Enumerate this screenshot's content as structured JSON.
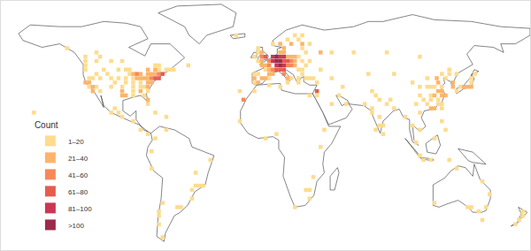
{
  "chart_data": {
    "type": "map",
    "color_title": "Count",
    "legend": "bottom left",
    "tick_labels": false,
    "xlim": [
      -180,
      180
    ],
    "ylim": [
      -60,
      85
    ],
    "bins": [
      {
        "label": "1–20",
        "min": 1,
        "max": 20,
        "color": "#fddc8e"
      },
      {
        "label": "21–40",
        "min": 21,
        "max": 40,
        "color": "#fcb46b"
      },
      {
        "label": "41–60",
        "min": 41,
        "max": 60,
        "color": "#f6895a"
      },
      {
        "label": "61–80",
        "min": 61,
        "max": 80,
        "color": "#e65c4f"
      },
      {
        "label": "81–100",
        "min": 81,
        "max": 100,
        "color": "#c93853"
      },
      {
        "label": ">100",
        "min": 101,
        "max": null,
        "color": "#9c2a4b"
      }
    ],
    "cells": [
      [
        -122.5,
        47.5,
        18
      ],
      [
        -122.5,
        45,
        12
      ],
      [
        -122.5,
        37.5,
        35
      ],
      [
        -120,
        37.5,
        22
      ],
      [
        -120,
        35,
        15
      ],
      [
        -117.5,
        35,
        28
      ],
      [
        -117.5,
        32.5,
        30
      ],
      [
        -120,
        40,
        6
      ],
      [
        -117.5,
        40,
        4
      ],
      [
        -115,
        35,
        8
      ],
      [
        -112.5,
        32.5,
        10
      ],
      [
        -112.5,
        40,
        12
      ],
      [
        -115,
        42.5,
        4
      ],
      [
        -110,
        45,
        3
      ],
      [
        -105,
        40,
        18
      ],
      [
        -105,
        35,
        9
      ],
      [
        -107.5,
        42.5,
        3
      ],
      [
        -102.5,
        37.5,
        4
      ],
      [
        -100,
        40,
        6
      ],
      [
        -97.5,
        30,
        22
      ],
      [
        -97.5,
        32.5,
        25
      ],
      [
        -95,
        30,
        28
      ],
      [
        -97.5,
        35,
        10
      ],
      [
        -95,
        37.5,
        12
      ],
      [
        -95,
        40,
        9
      ],
      [
        -92.5,
        42.5,
        14
      ],
      [
        -90,
        42.5,
        30
      ],
      [
        -87.5,
        42.5,
        45
      ],
      [
        -87.5,
        40,
        22
      ],
      [
        -90,
        40,
        12
      ],
      [
        -90,
        37.5,
        18
      ],
      [
        -90,
        35,
        10
      ],
      [
        -90,
        32.5,
        8
      ],
      [
        -90,
        30,
        14
      ],
      [
        -85,
        42.5,
        35
      ],
      [
        -85,
        40,
        26
      ],
      [
        -85,
        37.5,
        18
      ],
      [
        -85,
        35,
        20
      ],
      [
        -85,
        32.5,
        22
      ],
      [
        -82.5,
        40,
        30
      ],
      [
        -82.5,
        35,
        16
      ],
      [
        -82.5,
        30,
        12
      ],
      [
        -80,
        27.5,
        25
      ],
      [
        -80,
        25,
        20
      ],
      [
        -80,
        32.5,
        10
      ],
      [
        -80,
        35,
        24
      ],
      [
        -80,
        37.5,
        28
      ],
      [
        -80,
        40,
        38
      ],
      [
        -77.5,
        37.5,
        32
      ],
      [
        -77.5,
        40,
        48
      ],
      [
        -75,
        40,
        62
      ],
      [
        -75,
        42.5,
        40
      ],
      [
        -72.5,
        42.5,
        55
      ],
      [
        -70,
        42.5,
        72
      ],
      [
        -72.5,
        40,
        66
      ],
      [
        -77.5,
        42.5,
        25
      ],
      [
        -95,
        45,
        15
      ],
      [
        -92.5,
        45,
        18
      ],
      [
        -100,
        45,
        3
      ],
      [
        -122.5,
        50,
        8
      ],
      [
        -115,
        50,
        3
      ],
      [
        -80,
        45,
        26
      ],
      [
        -75,
        45,
        30
      ],
      [
        -72.5,
        45,
        14
      ],
      [
        -67.5,
        45,
        4
      ],
      [
        -105,
        50,
        3
      ],
      [
        -97.5,
        50,
        5
      ],
      [
        -65,
        45,
        3
      ],
      [
        -112.5,
        52.5,
        5
      ],
      [
        -80,
        42.5,
        28
      ],
      [
        -75,
        47.5,
        12
      ],
      [
        -72.5,
        47.5,
        8
      ],
      [
        -62.5,
        45,
        6
      ],
      [
        -52.5,
        47.5,
        3
      ],
      [
        -122.5,
        52.5,
        3
      ],
      [
        -135,
        57.5,
        2
      ],
      [
        -115,
        55,
        3
      ],
      [
        -100,
        20,
        14
      ],
      [
        -102.5,
        22.5,
        4
      ],
      [
        -97.5,
        17.5,
        3
      ],
      [
        -105,
        20,
        3
      ],
      [
        -90,
        15,
        3
      ],
      [
        -85,
        10,
        3
      ],
      [
        -80,
        7.5,
        3
      ],
      [
        -75,
        20,
        4
      ],
      [
        -67.5,
        17.5,
        8
      ],
      [
        -157.5,
        20,
        5
      ],
      [
        -75,
        5,
        4
      ],
      [
        -77.5,
        -2.5,
        3
      ],
      [
        -77.5,
        -12.5,
        4
      ],
      [
        -47.5,
        -22.5,
        12
      ],
      [
        -45,
        -22.5,
        10
      ],
      [
        -42.5,
        -22.5,
        8
      ],
      [
        -50,
        -25,
        5
      ],
      [
        -50,
        -30,
        4
      ],
      [
        -37.5,
        -7.5,
        3
      ],
      [
        -47.5,
        -15,
        3
      ],
      [
        -60,
        -35,
        8
      ],
      [
        -57.5,
        -35,
        5
      ],
      [
        -70,
        -32.5,
        10
      ],
      [
        -72.5,
        -37.5,
        6
      ],
      [
        -72.5,
        -40,
        4
      ],
      [
        -72.5,
        -45,
        3
      ],
      [
        -70,
        -52.5,
        2
      ],
      [
        -67.5,
        10,
        3
      ],
      [
        -2.5,
        52.5,
        45
      ],
      [
        -2.5,
        55,
        25
      ],
      [
        0,
        52.5,
        62
      ],
      [
        -5,
        50,
        20
      ],
      [
        -2.5,
        50,
        35
      ],
      [
        -5,
        55,
        18
      ],
      [
        -7.5,
        52.5,
        15
      ],
      [
        -5,
        57.5,
        10
      ],
      [
        2.5,
        47.5,
        48
      ],
      [
        2.5,
        50,
        55
      ],
      [
        0,
        47.5,
        30
      ],
      [
        -2.5,
        47.5,
        22
      ],
      [
        5,
        45,
        58
      ],
      [
        2.5,
        45,
        30
      ],
      [
        0,
        45,
        20
      ],
      [
        5,
        42.5,
        35
      ],
      [
        2.5,
        42.5,
        25
      ],
      [
        7.5,
        45,
        65
      ],
      [
        7.5,
        47.5,
        88
      ],
      [
        5,
        50,
        85
      ],
      [
        5,
        52.5,
        95
      ],
      [
        7.5,
        50,
        120
      ],
      [
        7.5,
        52.5,
        110
      ],
      [
        10,
        50,
        130
      ],
      [
        10,
        52.5,
        95
      ],
      [
        12.5,
        52.5,
        85
      ],
      [
        10,
        47.5,
        105
      ],
      [
        12.5,
        47.5,
        90
      ],
      [
        12.5,
        50,
        78
      ],
      [
        10,
        55,
        40
      ],
      [
        15,
        50,
        70
      ],
      [
        15,
        47.5,
        60
      ],
      [
        10,
        45,
        80
      ],
      [
        12.5,
        45,
        70
      ],
      [
        12.5,
        42.5,
        55
      ],
      [
        15,
        40,
        35
      ],
      [
        15,
        37.5,
        20
      ],
      [
        17.5,
        40,
        15
      ],
      [
        -2.5,
        40,
        40
      ],
      [
        -5,
        37.5,
        28
      ],
      [
        -7.5,
        40,
        22
      ],
      [
        -7.5,
        37.5,
        18
      ],
      [
        0,
        40,
        30
      ],
      [
        2.5,
        40,
        15
      ],
      [
        -7.5,
        42.5,
        15
      ],
      [
        -5,
        42.5,
        20
      ],
      [
        17.5,
        47.5,
        55
      ],
      [
        17.5,
        50,
        45
      ],
      [
        20,
        50,
        40
      ],
      [
        20,
        47.5,
        30
      ],
      [
        22.5,
        45,
        20
      ],
      [
        20,
        52.5,
        35
      ],
      [
        22.5,
        52.5,
        18
      ],
      [
        17.5,
        52.5,
        28
      ],
      [
        15,
        52.5,
        32
      ],
      [
        25,
        45,
        15
      ],
      [
        25,
        42.5,
        10
      ],
      [
        22.5,
        40,
        18
      ],
      [
        22.5,
        37.5,
        20
      ],
      [
        25,
        50,
        12
      ],
      [
        30,
        50,
        14
      ],
      [
        27.5,
        55,
        8
      ],
      [
        25,
        57.5,
        10
      ],
      [
        30,
        60,
        15
      ],
      [
        37.5,
        55,
        22
      ],
      [
        27.5,
        47.5,
        6
      ],
      [
        10,
        60,
        22
      ],
      [
        12.5,
        57.5,
        25
      ],
      [
        17.5,
        60,
        28
      ],
      [
        15,
        62.5,
        8
      ],
      [
        25,
        60,
        22
      ],
      [
        22.5,
        62.5,
        8
      ],
      [
        25,
        65,
        4
      ],
      [
        20,
        65,
        3
      ],
      [
        5,
        60,
        6
      ],
      [
        12.5,
        55,
        30
      ],
      [
        -20,
        65,
        4
      ],
      [
        27.5,
        40,
        15
      ],
      [
        30,
        40,
        12
      ],
      [
        32.5,
        40,
        10
      ],
      [
        35,
        37.5,
        6
      ],
      [
        35,
        32.5,
        70
      ],
      [
        35,
        30,
        12
      ],
      [
        45,
        25,
        3
      ],
      [
        52.5,
        35,
        8
      ],
      [
        50,
        30,
        3
      ],
      [
        55,
        25,
        6
      ],
      [
        45,
        40,
        4
      ],
      [
        37.5,
        45,
        4
      ],
      [
        45,
        55,
        4
      ],
      [
        60,
        55,
        3
      ],
      [
        82.5,
        55,
        3
      ],
      [
        105,
        52.5,
        2
      ],
      [
        130,
        42.5,
        3
      ],
      [
        70,
        42.5,
        2
      ],
      [
        30,
        30,
        5
      ],
      [
        -7.5,
        32.5,
        6
      ],
      [
        -15,
        27.5,
        45
      ],
      [
        10,
        35,
        5
      ],
      [
        2.5,
        36,
        4
      ],
      [
        -17.5,
        15,
        3
      ],
      [
        0,
        5,
        2
      ],
      [
        7.5,
        7.5,
        3
      ],
      [
        37.5,
        0,
        4
      ],
      [
        40,
        10,
        2
      ],
      [
        30,
        -25,
        8
      ],
      [
        27.5,
        -25,
        10
      ],
      [
        30,
        -30,
        5
      ],
      [
        20,
        -35,
        12
      ],
      [
        32.5,
        -17.5,
        3
      ],
      [
        -17.5,
        32.5,
        5
      ],
      [
        72.5,
        20,
        15
      ],
      [
        77.5,
        27.5,
        14
      ],
      [
        77.5,
        12.5,
        18
      ],
      [
        80,
        12.5,
        10
      ],
      [
        87.5,
        22.5,
        8
      ],
      [
        75,
        30,
        6
      ],
      [
        72.5,
        22.5,
        6
      ],
      [
        77.5,
        17.5,
        8
      ],
      [
        75,
        10,
        5
      ],
      [
        82.5,
        25,
        4
      ],
      [
        80,
        7.5,
        5
      ],
      [
        67.5,
        25,
        3
      ],
      [
        72.5,
        32.5,
        3
      ],
      [
        85,
        27.5,
        3
      ],
      [
        116.5,
        40,
        35
      ],
      [
        117.5,
        37.5,
        22
      ],
      [
        115,
        35,
        20
      ],
      [
        120,
        35,
        18
      ],
      [
        120,
        32.5,
        32
      ],
      [
        120,
        30,
        30
      ],
      [
        117.5,
        32.5,
        22
      ],
      [
        115,
        30,
        25
      ],
      [
        112.5,
        30,
        15
      ],
      [
        112.5,
        35,
        14
      ],
      [
        110,
        35,
        10
      ],
      [
        105,
        30,
        14
      ],
      [
        105,
        35,
        5
      ],
      [
        102.5,
        25,
        6
      ],
      [
        110,
        25,
        8
      ],
      [
        112.5,
        22.5,
        28
      ],
      [
        115,
        22.5,
        30
      ],
      [
        117.5,
        25,
        14
      ],
      [
        120,
        25,
        10
      ],
      [
        122.5,
        30,
        22
      ],
      [
        122.5,
        40,
        12
      ],
      [
        125,
        42.5,
        10
      ],
      [
        125,
        45,
        8
      ],
      [
        120,
        42.5,
        6
      ],
      [
        110,
        40,
        5
      ],
      [
        100,
        37.5,
        3
      ],
      [
        87.5,
        42.5,
        3
      ],
      [
        107.5,
        27.5,
        6
      ],
      [
        112.5,
        27.5,
        10
      ],
      [
        117.5,
        27.5,
        8
      ],
      [
        127.5,
        37.5,
        35
      ],
      [
        127.5,
        35,
        22
      ],
      [
        130,
        32.5,
        14
      ],
      [
        132.5,
        35,
        18
      ],
      [
        135,
        35,
        30
      ],
      [
        137.5,
        35,
        24
      ],
      [
        140,
        35,
        38
      ],
      [
        140,
        37.5,
        14
      ],
      [
        140,
        40,
        6
      ],
      [
        142.5,
        42.5,
        5
      ],
      [
        120,
        22.5,
        20
      ],
      [
        100,
        12.5,
        8
      ],
      [
        105,
        20,
        6
      ],
      [
        105,
        10,
        6
      ],
      [
        102.5,
        2.5,
        10
      ],
      [
        105,
        -5,
        5
      ],
      [
        107.5,
        -7.5,
        8
      ],
      [
        112.5,
        -7.5,
        5
      ],
      [
        120,
        15,
        8
      ],
      [
        122.5,
        10,
        4
      ],
      [
        115,
        5,
        3
      ],
      [
        95,
        17.5,
        3
      ],
      [
        125,
        -7.5,
        2
      ],
      [
        150,
        -35,
        12
      ],
      [
        152.5,
        -27.5,
        8
      ],
      [
        145,
        -37.5,
        14
      ],
      [
        137.5,
        -35,
        6
      ],
      [
        115,
        -32.5,
        8
      ],
      [
        147.5,
        -42.5,
        4
      ],
      [
        130,
        -12.5,
        2
      ],
      [
        147.5,
        -20,
        3
      ],
      [
        140,
        -35,
        3
      ],
      [
        175,
        -37.5,
        8
      ],
      [
        175,
        -40,
        6
      ],
      [
        172.5,
        -42.5,
        5
      ],
      [
        170,
        -45,
        3
      ]
    ]
  }
}
